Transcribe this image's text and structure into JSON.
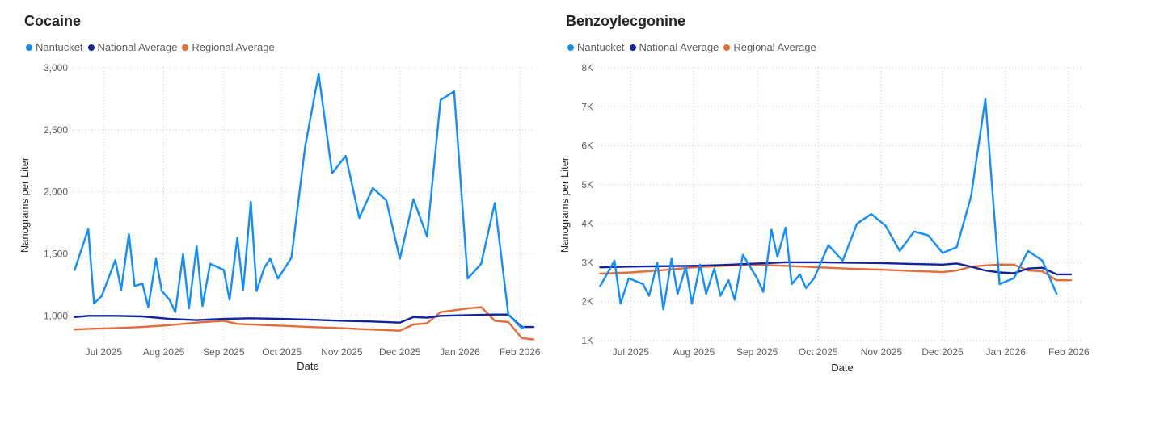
{
  "colors": {
    "nantucket": "#118DFF",
    "national": "#12239E",
    "regional": "#E66C37"
  },
  "chart_data": [
    {
      "type": "line",
      "title": "Cocaine",
      "xlabel": "Date",
      "ylabel": "Nanograms per Liter",
      "ylim": [
        800,
        3000
      ],
      "xlim": [
        "2025-06-15",
        "2026-02-08"
      ],
      "y_ticks": [
        1000,
        1500,
        2000,
        2500,
        3000
      ],
      "y_tick_labels": [
        "1,000",
        "1,500",
        "2,000",
        "2,500",
        "3,000"
      ],
      "x_ticks": [
        "2025-07-01",
        "2025-08-01",
        "2025-09-01",
        "2025-10-01",
        "2025-11-01",
        "2025-12-01",
        "2026-01-01",
        "2026-02-01"
      ],
      "x_tick_labels": [
        "Jul 2025",
        "Aug 2025",
        "Sep 2025",
        "Oct 2025",
        "Nov 2025",
        "Dec 2025",
        "Jan 2026",
        "Feb 2026"
      ],
      "grid": true,
      "legend_position": "top-left",
      "series": [
        {
          "name": "Nantucket",
          "color_key": "nantucket",
          "points": [
            [
              "2025-06-16",
              1370
            ],
            [
              "2025-06-23",
              1700
            ],
            [
              "2025-06-26",
              1100
            ],
            [
              "2025-06-30",
              1160
            ],
            [
              "2025-07-07",
              1450
            ],
            [
              "2025-07-10",
              1210
            ],
            [
              "2025-07-14",
              1660
            ],
            [
              "2025-07-17",
              1240
            ],
            [
              "2025-07-21",
              1260
            ],
            [
              "2025-07-24",
              1070
            ],
            [
              "2025-07-28",
              1460
            ],
            [
              "2025-07-31",
              1200
            ],
            [
              "2025-08-04",
              1130
            ],
            [
              "2025-08-07",
              1030
            ],
            [
              "2025-08-11",
              1500
            ],
            [
              "2025-08-14",
              1060
            ],
            [
              "2025-08-18",
              1560
            ],
            [
              "2025-08-21",
              1080
            ],
            [
              "2025-08-25",
              1420
            ],
            [
              "2025-09-01",
              1370
            ],
            [
              "2025-09-04",
              1130
            ],
            [
              "2025-09-08",
              1630
            ],
            [
              "2025-09-11",
              1210
            ],
            [
              "2025-09-15",
              1920
            ],
            [
              "2025-09-18",
              1200
            ],
            [
              "2025-09-22",
              1390
            ],
            [
              "2025-09-25",
              1460
            ],
            [
              "2025-09-29",
              1300
            ],
            [
              "2025-10-06",
              1470
            ],
            [
              "2025-10-13",
              2360
            ],
            [
              "2025-10-20",
              2950
            ],
            [
              "2025-10-27",
              2150
            ],
            [
              "2025-11-03",
              2290
            ],
            [
              "2025-11-10",
              1790
            ],
            [
              "2025-11-17",
              2030
            ],
            [
              "2025-11-24",
              1930
            ],
            [
              "2025-12-01",
              1460
            ],
            [
              "2025-12-08",
              1940
            ],
            [
              "2025-12-15",
              1640
            ],
            [
              "2025-12-22",
              2740
            ],
            [
              "2025-12-29",
              2810
            ],
            [
              "2026-01-05",
              1300
            ],
            [
              "2026-01-12",
              1420
            ],
            [
              "2026-01-19",
              1910
            ],
            [
              "2026-01-26",
              1010
            ],
            [
              "2026-02-02",
              900
            ],
            [
              "2026-02-03",
              910
            ]
          ]
        },
        {
          "name": "National Average",
          "color_key": "national",
          "points": [
            [
              "2025-06-16",
              990
            ],
            [
              "2025-06-23",
              1000
            ],
            [
              "2025-07-07",
              1000
            ],
            [
              "2025-07-21",
              995
            ],
            [
              "2025-08-04",
              975
            ],
            [
              "2025-08-18",
              965
            ],
            [
              "2025-09-01",
              975
            ],
            [
              "2025-09-15",
              980
            ],
            [
              "2025-10-01",
              975
            ],
            [
              "2025-10-15",
              970
            ],
            [
              "2025-11-01",
              960
            ],
            [
              "2025-11-15",
              955
            ],
            [
              "2025-12-01",
              945
            ],
            [
              "2025-12-08",
              990
            ],
            [
              "2025-12-15",
              985
            ],
            [
              "2025-12-22",
              1000
            ],
            [
              "2026-01-05",
              1005
            ],
            [
              "2026-01-19",
              1010
            ],
            [
              "2026-01-26",
              1010
            ],
            [
              "2026-02-02",
              910
            ],
            [
              "2026-02-08",
              910
            ]
          ]
        },
        {
          "name": "Regional Average",
          "color_key": "regional",
          "points": [
            [
              "2025-06-16",
              890
            ],
            [
              "2025-06-23",
              895
            ],
            [
              "2025-07-07",
              900
            ],
            [
              "2025-07-21",
              910
            ],
            [
              "2025-08-04",
              925
            ],
            [
              "2025-08-18",
              945
            ],
            [
              "2025-09-01",
              960
            ],
            [
              "2025-09-08",
              935
            ],
            [
              "2025-10-01",
              920
            ],
            [
              "2025-10-15",
              910
            ],
            [
              "2025-11-01",
              900
            ],
            [
              "2025-11-15",
              890
            ],
            [
              "2025-12-01",
              880
            ],
            [
              "2025-12-08",
              930
            ],
            [
              "2025-12-15",
              940
            ],
            [
              "2025-12-22",
              1030
            ],
            [
              "2026-01-05",
              1060
            ],
            [
              "2026-01-12",
              1070
            ],
            [
              "2026-01-19",
              960
            ],
            [
              "2026-01-26",
              950
            ],
            [
              "2026-02-02",
              820
            ],
            [
              "2026-02-08",
              810
            ]
          ]
        }
      ]
    },
    {
      "type": "line",
      "title": "Benzoylecgonine",
      "xlabel": "Date",
      "ylabel": "Nanograms per Liter",
      "ylim": [
        1000,
        8000
      ],
      "xlim": [
        "2025-06-15",
        "2026-02-08"
      ],
      "y_ticks": [
        1000,
        2000,
        3000,
        4000,
        5000,
        6000,
        7000,
        8000
      ],
      "y_tick_labels": [
        "1K",
        "2K",
        "3K",
        "4K",
        "5K",
        "6K",
        "7K",
        "8K"
      ],
      "x_ticks": [
        "2025-07-01",
        "2025-08-01",
        "2025-09-01",
        "2025-10-01",
        "2025-11-01",
        "2025-12-01",
        "2026-01-01",
        "2026-02-01"
      ],
      "x_tick_labels": [
        "Jul 2025",
        "Aug 2025",
        "Sep 2025",
        "Oct 2025",
        "Nov 2025",
        "Dec 2025",
        "Jan 2026",
        "Feb 2026"
      ],
      "grid": true,
      "legend_position": "top-left",
      "series": [
        {
          "name": "Nantucket",
          "color_key": "nantucket",
          "points": [
            [
              "2025-06-16",
              2400
            ],
            [
              "2025-06-23",
              3050
            ],
            [
              "2025-06-26",
              1950
            ],
            [
              "2025-06-30",
              2600
            ],
            [
              "2025-07-07",
              2450
            ],
            [
              "2025-07-10",
              2150
            ],
            [
              "2025-07-14",
              3000
            ],
            [
              "2025-07-17",
              1800
            ],
            [
              "2025-07-21",
              3100
            ],
            [
              "2025-07-24",
              2200
            ],
            [
              "2025-07-28",
              2900
            ],
            [
              "2025-07-31",
              1950
            ],
            [
              "2025-08-04",
              2950
            ],
            [
              "2025-08-07",
              2200
            ],
            [
              "2025-08-11",
              2850
            ],
            [
              "2025-08-14",
              2150
            ],
            [
              "2025-08-18",
              2550
            ],
            [
              "2025-08-21",
              2050
            ],
            [
              "2025-08-25",
              3200
            ],
            [
              "2025-09-01",
              2600
            ],
            [
              "2025-09-04",
              2250
            ],
            [
              "2025-09-08",
              3850
            ],
            [
              "2025-09-11",
              3150
            ],
            [
              "2025-09-15",
              3900
            ],
            [
              "2025-09-18",
              2450
            ],
            [
              "2025-09-22",
              2700
            ],
            [
              "2025-09-25",
              2350
            ],
            [
              "2025-09-29",
              2600
            ],
            [
              "2025-10-06",
              3450
            ],
            [
              "2025-10-13",
              3050
            ],
            [
              "2025-10-20",
              4000
            ],
            [
              "2025-10-27",
              4250
            ],
            [
              "2025-11-03",
              3950
            ],
            [
              "2025-11-10",
              3300
            ],
            [
              "2025-11-17",
              3800
            ],
            [
              "2025-11-24",
              3700
            ],
            [
              "2025-12-01",
              3250
            ],
            [
              "2025-12-08",
              3400
            ],
            [
              "2025-12-15",
              4700
            ],
            [
              "2025-12-22",
              7200
            ],
            [
              "2025-12-29",
              2450
            ],
            [
              "2026-01-05",
              2600
            ],
            [
              "2026-01-12",
              3300
            ],
            [
              "2026-01-19",
              3050
            ],
            [
              "2026-01-26",
              2200
            ]
          ]
        },
        {
          "name": "National Average",
          "color_key": "national",
          "points": [
            [
              "2025-06-16",
              2880
            ],
            [
              "2025-07-01",
              2900
            ],
            [
              "2025-07-15",
              2910
            ],
            [
              "2025-08-01",
              2920
            ],
            [
              "2025-08-15",
              2940
            ],
            [
              "2025-09-01",
              2980
            ],
            [
              "2025-09-15",
              3010
            ],
            [
              "2025-10-01",
              3010
            ],
            [
              "2025-10-15",
              3000
            ],
            [
              "2025-11-01",
              2990
            ],
            [
              "2025-11-15",
              2970
            ],
            [
              "2025-12-01",
              2950
            ],
            [
              "2025-12-08",
              2980
            ],
            [
              "2025-12-15",
              2900
            ],
            [
              "2025-12-22",
              2800
            ],
            [
              "2025-12-29",
              2750
            ],
            [
              "2026-01-05",
              2730
            ],
            [
              "2026-01-12",
              2850
            ],
            [
              "2026-01-19",
              2870
            ],
            [
              "2026-01-26",
              2700
            ],
            [
              "2026-02-02",
              2700
            ]
          ]
        },
        {
          "name": "Regional Average",
          "color_key": "regional",
          "points": [
            [
              "2025-06-16",
              2720
            ],
            [
              "2025-07-01",
              2750
            ],
            [
              "2025-07-15",
              2800
            ],
            [
              "2025-08-01",
              2880
            ],
            [
              "2025-08-15",
              2920
            ],
            [
              "2025-09-01",
              2950
            ],
            [
              "2025-09-15",
              2920
            ],
            [
              "2025-10-01",
              2880
            ],
            [
              "2025-10-15",
              2850
            ],
            [
              "2025-11-01",
              2820
            ],
            [
              "2025-11-15",
              2790
            ],
            [
              "2025-12-01",
              2760
            ],
            [
              "2025-12-08",
              2800
            ],
            [
              "2025-12-15",
              2900
            ],
            [
              "2025-12-22",
              2930
            ],
            [
              "2025-12-29",
              2950
            ],
            [
              "2026-01-05",
              2950
            ],
            [
              "2026-01-12",
              2800
            ],
            [
              "2026-01-19",
              2780
            ],
            [
              "2026-01-26",
              2550
            ],
            [
              "2026-02-02",
              2550
            ]
          ]
        }
      ]
    }
  ]
}
